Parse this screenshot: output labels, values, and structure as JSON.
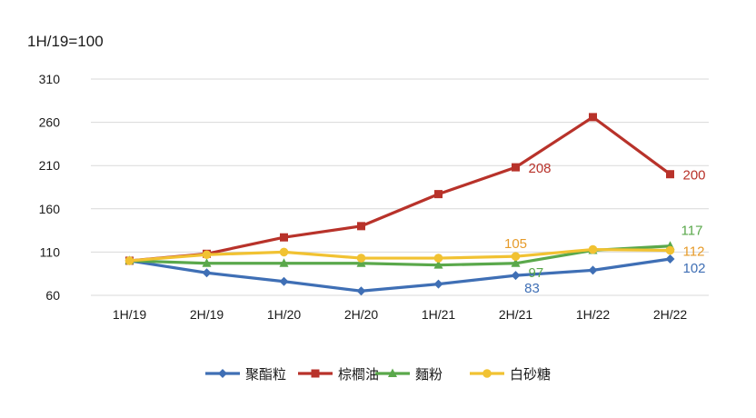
{
  "chart_data": {
    "type": "line",
    "ylabel": "1H/19=100",
    "categories": [
      "1H/19",
      "2H/19",
      "1H/20",
      "2H/20",
      "1H/21",
      "2H/21",
      "1H/22",
      "2H/22"
    ],
    "ylim": [
      60,
      310
    ],
    "yticks": [
      60,
      110,
      160,
      210,
      260,
      310
    ],
    "grid": true,
    "legend_position": "bottom",
    "series": [
      {
        "name": "聚酯粒",
        "color": "#3f6fb5",
        "marker": "diamond",
        "values": [
          100,
          86,
          76,
          65,
          73,
          83,
          89,
          102
        ]
      },
      {
        "name": "棕櫚油",
        "color": "#b8322a",
        "marker": "square",
        "values": [
          100,
          108,
          127,
          140,
          177,
          208,
          266,
          200
        ]
      },
      {
        "name": "麵粉",
        "color": "#5aa84b",
        "marker": "triangle",
        "values": [
          100,
          97,
          97,
          97,
          95,
          97,
          112,
          117
        ]
      },
      {
        "name": "白砂糖",
        "color": "#f1c232",
        "marker": "circle",
        "values": [
          100,
          107,
          110,
          103,
          103,
          105,
          113,
          112
        ]
      }
    ],
    "annotations": [
      {
        "series": 1,
        "index": 5,
        "text": "208",
        "color": "#b8322a",
        "pos": "right"
      },
      {
        "series": 1,
        "index": 7,
        "text": "200",
        "color": "#b8322a",
        "pos": "right"
      },
      {
        "series": 3,
        "index": 5,
        "text": "105",
        "color": "#e69b2a",
        "pos": "above"
      },
      {
        "series": 2,
        "index": 5,
        "text": "97",
        "color": "#5aa84b",
        "pos": "below-right"
      },
      {
        "series": 0,
        "index": 5,
        "text": "83",
        "color": "#3f6fb5",
        "pos": "below"
      },
      {
        "series": 2,
        "index": 7,
        "text": "117",
        "color": "#5aa84b",
        "pos": "above-right"
      },
      {
        "series": 3,
        "index": 7,
        "text": "112",
        "color": "#e69b2a",
        "pos": "right"
      },
      {
        "series": 0,
        "index": 7,
        "text": "102",
        "color": "#3f6fb5",
        "pos": "below-right"
      }
    ]
  }
}
